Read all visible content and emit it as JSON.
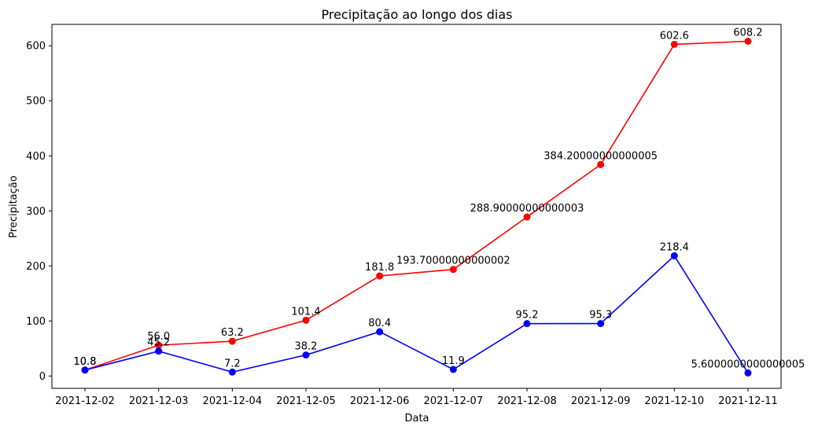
{
  "chart_data": {
    "type": "line",
    "title": "Precipitação ao longo dos dias",
    "xlabel": "Data",
    "ylabel": "Precipitação",
    "categories": [
      "2021-12-02",
      "2021-12-03",
      "2021-12-04",
      "2021-12-05",
      "2021-12-06",
      "2021-12-07",
      "2021-12-08",
      "2021-12-09",
      "2021-12-10",
      "2021-12-11"
    ],
    "ylim": [
      -22.4,
      638.9
    ],
    "yticks": [
      0,
      100,
      200,
      300,
      400,
      500,
      600
    ],
    "grid": false,
    "series": [
      {
        "color": "#ff0000",
        "values": [
          10.8,
          56.0,
          63.2,
          101.4,
          181.8,
          193.70000000000002,
          288.90000000000003,
          384.20000000000005,
          602.6,
          608.2
        ],
        "labels": [
          "10.8",
          "56.0",
          "63.2",
          "101.4",
          "181.8",
          "193.70000000000002",
          "288.90000000000003",
          "384.20000000000005",
          "602.6",
          "608.2"
        ]
      },
      {
        "color": "#0000ff",
        "values": [
          10.8,
          45.2,
          7.2,
          38.2,
          80.4,
          11.9,
          95.2,
          95.3,
          218.4,
          5.6000000000000005
        ],
        "labels": [
          "10.8",
          "45.2",
          "7.2",
          "38.2",
          "80.4",
          "11.9",
          "95.2",
          "95.3",
          "218.4",
          "5.6000000000000005"
        ]
      }
    ]
  }
}
